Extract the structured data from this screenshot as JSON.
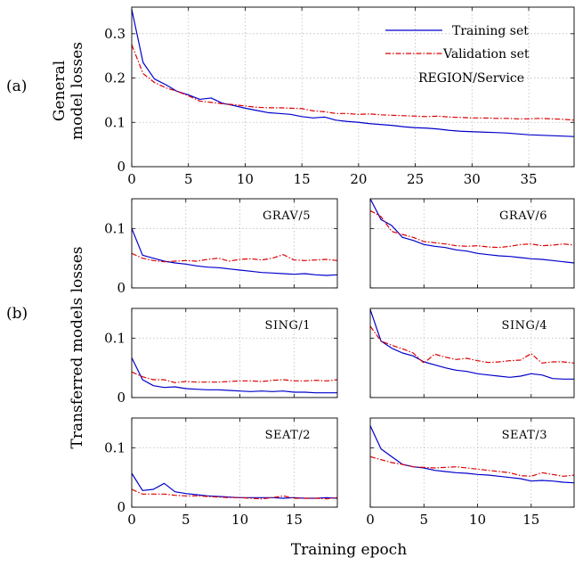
{
  "figure": {
    "label_a": "(a)",
    "label_b": "(b)",
    "xlabel": "Training epoch",
    "ylabel_a_line1": "General",
    "ylabel_a_line2": "model losses",
    "ylabel_b": "Transferred models losses"
  },
  "legend": {
    "training": "Training set",
    "validation": "Validation set",
    "region_service": "REGION/Service"
  },
  "colors": {
    "training": "#0000cc",
    "validation": "#dd0000"
  },
  "chart_data": [
    {
      "id": "general",
      "type": "line",
      "title": "",
      "xlim": [
        0,
        39
      ],
      "ylim": [
        0,
        0.36
      ],
      "xticks": [
        0,
        5,
        10,
        15,
        20,
        25,
        30,
        35
      ],
      "yticks": [
        0,
        0.1,
        0.2,
        0.3
      ],
      "ytick_labels": [
        "0",
        "0.1",
        "0.2",
        "0.3"
      ],
      "xtick_labels": [
        "0",
        "5",
        "10",
        "15",
        "20",
        "25",
        "30",
        "35"
      ],
      "x": [
        0,
        1,
        2,
        3,
        4,
        5,
        6,
        7,
        8,
        9,
        10,
        11,
        12,
        13,
        14,
        15,
        16,
        17,
        18,
        19,
        20,
        21,
        22,
        23,
        24,
        25,
        26,
        27,
        28,
        29,
        30,
        31,
        32,
        33,
        34,
        35,
        36,
        37,
        38,
        39
      ],
      "series": [
        {
          "name": "Training set",
          "values": [
            0.355,
            0.235,
            0.198,
            0.185,
            0.17,
            0.162,
            0.152,
            0.155,
            0.143,
            0.138,
            0.132,
            0.127,
            0.122,
            0.12,
            0.118,
            0.113,
            0.11,
            0.112,
            0.105,
            0.102,
            0.1,
            0.097,
            0.095,
            0.093,
            0.09,
            0.088,
            0.087,
            0.085,
            0.082,
            0.08,
            0.079,
            0.078,
            0.077,
            0.076,
            0.074,
            0.072,
            0.071,
            0.07,
            0.069,
            0.068
          ]
        },
        {
          "name": "Validation set",
          "values": [
            0.275,
            0.21,
            0.19,
            0.178,
            0.17,
            0.16,
            0.148,
            0.145,
            0.142,
            0.14,
            0.137,
            0.134,
            0.133,
            0.133,
            0.132,
            0.131,
            0.126,
            0.124,
            0.12,
            0.12,
            0.118,
            0.119,
            0.117,
            0.116,
            0.115,
            0.114,
            0.113,
            0.114,
            0.112,
            0.111,
            0.11,
            0.11,
            0.109,
            0.109,
            0.108,
            0.108,
            0.109,
            0.108,
            0.107,
            0.105
          ]
        }
      ]
    },
    {
      "id": "grav5",
      "type": "line",
      "title": "GRAV/5",
      "xlim": [
        0,
        19
      ],
      "ylim": [
        0,
        0.15
      ],
      "x": [
        0,
        1,
        2,
        3,
        4,
        5,
        6,
        7,
        8,
        9,
        10,
        11,
        12,
        13,
        14,
        15,
        16,
        17,
        18,
        19
      ],
      "series": [
        {
          "name": "Training set",
          "values": [
            0.1,
            0.055,
            0.05,
            0.045,
            0.042,
            0.04,
            0.037,
            0.035,
            0.034,
            0.032,
            0.03,
            0.028,
            0.026,
            0.025,
            0.024,
            0.023,
            0.024,
            0.022,
            0.021,
            0.022
          ]
        },
        {
          "name": "Validation set",
          "values": [
            0.058,
            0.05,
            0.046,
            0.044,
            0.045,
            0.046,
            0.045,
            0.048,
            0.05,
            0.045,
            0.048,
            0.049,
            0.047,
            0.05,
            0.056,
            0.047,
            0.046,
            0.047,
            0.048,
            0.046
          ]
        }
      ]
    },
    {
      "id": "grav6",
      "type": "line",
      "title": "GRAV/6",
      "xlim": [
        0,
        19
      ],
      "ylim": [
        0,
        0.15
      ],
      "x": [
        0,
        1,
        2,
        3,
        4,
        5,
        6,
        7,
        8,
        9,
        10,
        11,
        12,
        13,
        14,
        15,
        16,
        17,
        18,
        19
      ],
      "series": [
        {
          "name": "Training set",
          "values": [
            0.15,
            0.115,
            0.105,
            0.085,
            0.08,
            0.073,
            0.07,
            0.068,
            0.064,
            0.062,
            0.058,
            0.056,
            0.054,
            0.053,
            0.051,
            0.049,
            0.048,
            0.046,
            0.044,
            0.042
          ]
        },
        {
          "name": "Validation set",
          "values": [
            0.13,
            0.12,
            0.095,
            0.09,
            0.085,
            0.078,
            0.076,
            0.074,
            0.071,
            0.07,
            0.071,
            0.069,
            0.068,
            0.07,
            0.073,
            0.074,
            0.071,
            0.072,
            0.074,
            0.072
          ]
        }
      ]
    },
    {
      "id": "sing1",
      "type": "line",
      "title": "SING/1",
      "xlim": [
        0,
        19
      ],
      "ylim": [
        0,
        0.15
      ],
      "x": [
        0,
        1,
        2,
        3,
        4,
        5,
        6,
        7,
        8,
        9,
        10,
        11,
        12,
        13,
        14,
        15,
        16,
        17,
        18,
        19
      ],
      "series": [
        {
          "name": "Training set",
          "values": [
            0.067,
            0.03,
            0.02,
            0.017,
            0.018,
            0.015,
            0.014,
            0.013,
            0.013,
            0.012,
            0.011,
            0.01,
            0.011,
            0.01,
            0.011,
            0.009,
            0.009,
            0.008,
            0.008,
            0.008
          ]
        },
        {
          "name": "Validation set",
          "values": [
            0.043,
            0.035,
            0.03,
            0.03,
            0.025,
            0.027,
            0.026,
            0.026,
            0.026,
            0.027,
            0.028,
            0.028,
            0.027,
            0.029,
            0.03,
            0.028,
            0.028,
            0.029,
            0.028,
            0.03
          ]
        }
      ]
    },
    {
      "id": "sing4",
      "type": "line",
      "title": "SING/4",
      "xlim": [
        0,
        19
      ],
      "ylim": [
        0,
        0.15
      ],
      "x": [
        0,
        1,
        2,
        3,
        4,
        5,
        6,
        7,
        8,
        9,
        10,
        11,
        12,
        13,
        14,
        15,
        16,
        17,
        18,
        19
      ],
      "series": [
        {
          "name": "Training set",
          "values": [
            0.148,
            0.095,
            0.083,
            0.075,
            0.07,
            0.06,
            0.055,
            0.05,
            0.046,
            0.044,
            0.04,
            0.038,
            0.036,
            0.034,
            0.036,
            0.04,
            0.038,
            0.032,
            0.031,
            0.031
          ]
        },
        {
          "name": "Validation set",
          "values": [
            0.12,
            0.095,
            0.088,
            0.082,
            0.075,
            0.058,
            0.073,
            0.068,
            0.064,
            0.066,
            0.062,
            0.059,
            0.06,
            0.062,
            0.063,
            0.074,
            0.058,
            0.06,
            0.06,
            0.058
          ]
        }
      ]
    },
    {
      "id": "seat2",
      "type": "line",
      "title": "SEAT/2",
      "xlim": [
        0,
        19
      ],
      "ylim": [
        0,
        0.15
      ],
      "x": [
        0,
        1,
        2,
        3,
        4,
        5,
        6,
        7,
        8,
        9,
        10,
        11,
        12,
        13,
        14,
        15,
        16,
        17,
        18,
        19
      ],
      "series": [
        {
          "name": "Training set",
          "values": [
            0.057,
            0.028,
            0.03,
            0.04,
            0.026,
            0.023,
            0.021,
            0.019,
            0.018,
            0.017,
            0.016,
            0.016,
            0.016,
            0.016,
            0.015,
            0.016,
            0.015,
            0.015,
            0.016,
            0.015
          ]
        },
        {
          "name": "Validation set",
          "values": [
            0.03,
            0.022,
            0.022,
            0.022,
            0.02,
            0.019,
            0.019,
            0.018,
            0.017,
            0.016,
            0.016,
            0.015,
            0.014,
            0.016,
            0.019,
            0.015,
            0.015,
            0.015,
            0.014,
            0.016
          ]
        }
      ]
    },
    {
      "id": "seat3",
      "type": "line",
      "title": "SEAT/3",
      "xlim": [
        0,
        19
      ],
      "ylim": [
        0,
        0.15
      ],
      "x": [
        0,
        1,
        2,
        3,
        4,
        5,
        6,
        7,
        8,
        9,
        10,
        11,
        12,
        13,
        14,
        15,
        16,
        17,
        18,
        19
      ],
      "series": [
        {
          "name": "Training set",
          "values": [
            0.137,
            0.098,
            0.085,
            0.072,
            0.068,
            0.066,
            0.062,
            0.06,
            0.058,
            0.057,
            0.055,
            0.054,
            0.052,
            0.05,
            0.048,
            0.044,
            0.045,
            0.044,
            0.042,
            0.041
          ]
        },
        {
          "name": "Validation set",
          "values": [
            0.085,
            0.08,
            0.075,
            0.072,
            0.068,
            0.067,
            0.066,
            0.067,
            0.068,
            0.066,
            0.064,
            0.062,
            0.06,
            0.058,
            0.053,
            0.052,
            0.058,
            0.055,
            0.052,
            0.054
          ]
        }
      ]
    }
  ],
  "small_axes": {
    "xticks": [
      0,
      5,
      10,
      15
    ],
    "xtick_labels": [
      "0",
      "5",
      "10",
      "15"
    ],
    "yticks": [
      0,
      0.1
    ],
    "ytick_labels": [
      "0",
      "0.1"
    ]
  }
}
